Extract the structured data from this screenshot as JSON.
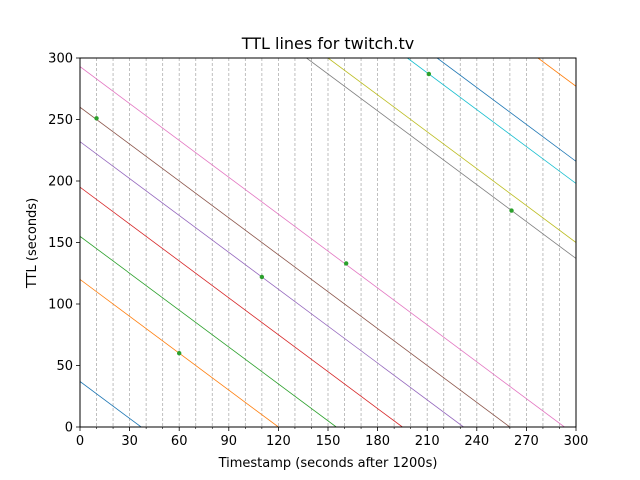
{
  "chart_data": {
    "type": "line",
    "title": "TTL lines for twitch.tv",
    "xlabel": "Timestamp (seconds after 1200s)",
    "ylabel": "TTL (seconds)",
    "xlim": [
      0,
      300
    ],
    "ylim": [
      0,
      300
    ],
    "xticks": [
      0,
      30,
      60,
      90,
      120,
      150,
      180,
      210,
      240,
      270,
      300
    ],
    "yticks": [
      0,
      50,
      100,
      150,
      200,
      250,
      300
    ],
    "vertical_gridlines_every": 10,
    "series": [
      {
        "color": "#1f77b4",
        "x": [
          0,
          37
        ],
        "y": [
          37,
          0
        ]
      },
      {
        "color": "#ff7f0e",
        "x": [
          0,
          120
        ],
        "y": [
          120,
          0
        ]
      },
      {
        "color": "#2ca02c",
        "x": [
          0,
          155
        ],
        "y": [
          155,
          0
        ]
      },
      {
        "color": "#d62728",
        "x": [
          0,
          195
        ],
        "y": [
          195,
          0
        ]
      },
      {
        "color": "#9467bd",
        "x": [
          0,
          232
        ],
        "y": [
          232,
          0
        ]
      },
      {
        "color": "#8c564b",
        "x": [
          0,
          260
        ],
        "y": [
          260,
          0
        ]
      },
      {
        "color": "#e377c2",
        "x": [
          0,
          293
        ],
        "y": [
          293,
          0
        ]
      },
      {
        "color": "#7f7f7f",
        "x": [
          137,
          300
        ],
        "y": [
          300,
          137
        ]
      },
      {
        "color": "#bcbd22",
        "x": [
          150,
          300
        ],
        "y": [
          300,
          150
        ]
      },
      {
        "color": "#17becf",
        "x": [
          198,
          300
        ],
        "y": [
          300,
          198
        ]
      },
      {
        "color": "#1f77b4",
        "x": [
          216,
          300
        ],
        "y": [
          300,
          216
        ]
      },
      {
        "color": "#ff7f0e",
        "x": [
          277,
          300
        ],
        "y": [
          300,
          277
        ]
      }
    ],
    "points": {
      "color": "#2ca02c",
      "x": [
        10,
        60,
        110,
        161,
        211,
        261
      ],
      "y": [
        251,
        60,
        122,
        133,
        287,
        176
      ]
    }
  }
}
